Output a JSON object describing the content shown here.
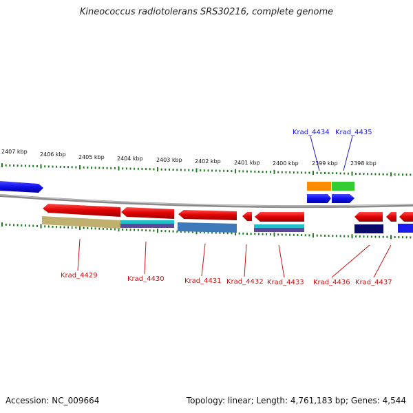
{
  "title": "Kineococcus radiotolerans SRS30216, complete genome",
  "footer": {
    "accession": "Accession: NC_009664",
    "summary": "Topology: linear; Length: 4,761,183 bp; Genes: 4,544"
  },
  "colors": {
    "forward_gene": "#1a1aee",
    "reverse_gene": "#e01010",
    "top_label": "#1a1acc",
    "bottom_label": "#cc1111",
    "tick": "#227722",
    "backbone": "#888888"
  },
  "scale_labels": [
    "2407 kbp",
    "2406 kbp",
    "2405 kbp",
    "2404 kbp",
    "2403 kbp",
    "2402 kbp",
    "2401 kbp",
    "2400 kbp",
    "2399 kbp",
    "2398 kbp"
  ],
  "top_gene_labels": [
    "Krad_4434",
    "Krad_4435"
  ],
  "bottom_gene_labels": [
    "Krad_4429",
    "Krad_4430",
    "Krad_4431",
    "Krad_4432",
    "Krad_4433",
    "Krad_4436",
    "Krad_4437"
  ]
}
